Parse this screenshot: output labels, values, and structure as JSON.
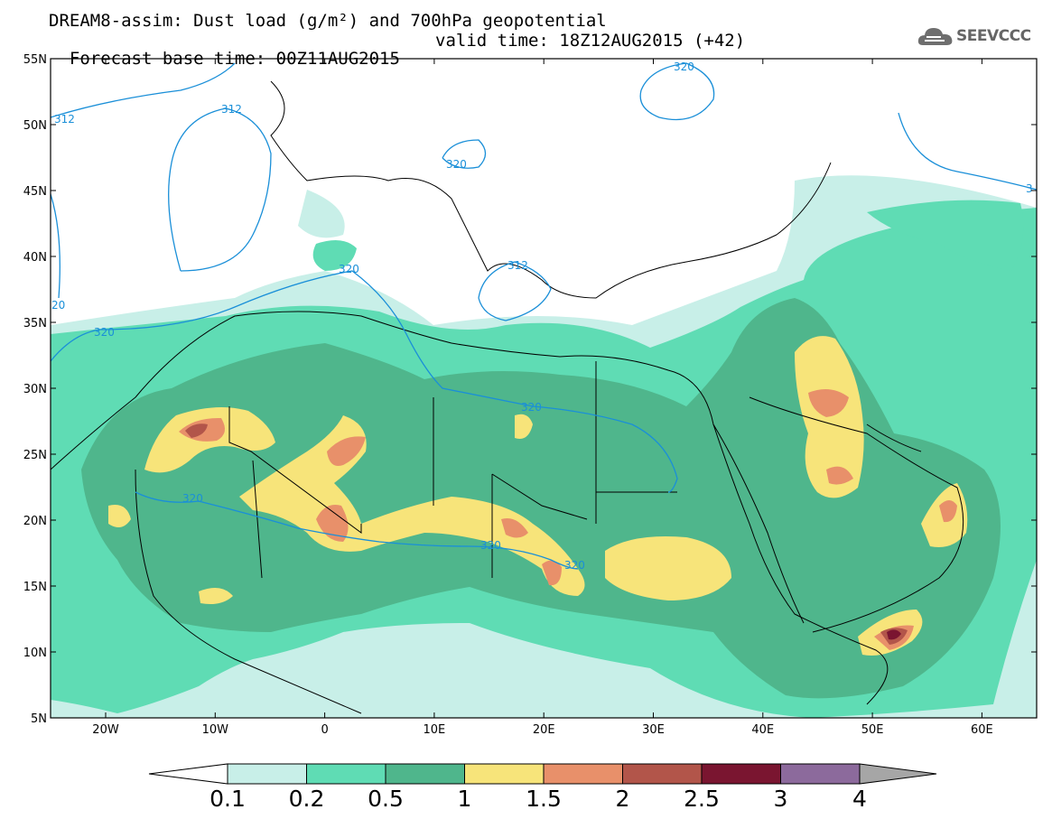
{
  "header": {
    "title_line1": "DREAM8-assim: Dust load (g/m²) and 700hPa geopotential",
    "base_time": "Forecast base time: 00Z11AUG2015",
    "valid_time": "valid time: 18Z12AUG2015 (+42)"
  },
  "logo": {
    "text": "SEEVCCC",
    "icon": "cloud-icon"
  },
  "axes": {
    "lat_labels": [
      "55N",
      "50N",
      "45N",
      "40N",
      "35N",
      "30N",
      "25N",
      "20N",
      "15N",
      "10N",
      "5N"
    ],
    "lon_labels": [
      "20W",
      "10W",
      "0",
      "10E",
      "20E",
      "30E",
      "40E",
      "50E",
      "60E"
    ]
  },
  "colorbar": {
    "labels": [
      "0.1",
      "0.2",
      "0.5",
      "1",
      "1.5",
      "2",
      "2.5",
      "3",
      "4"
    ],
    "colors": [
      "#c8efe8",
      "#5fdcb4",
      "#4fb68c",
      "#f7e47a",
      "#e8906a",
      "#b2554a",
      "#7a1530",
      "#8c6a9c"
    ],
    "under_color": "#ffffff",
    "over_color": "#a6a6a6"
  },
  "contour_labels": [
    "312",
    "312",
    "320",
    "320",
    "320",
    "312",
    "320",
    "320",
    "320",
    "320",
    "320",
    "320",
    "3",
    "20"
  ]
}
